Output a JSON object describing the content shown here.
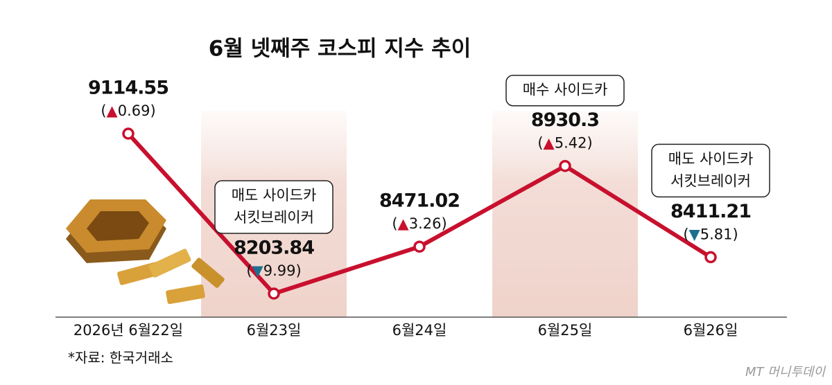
{
  "chart_data": {
    "type": "line",
    "title": "6월 넷째주 코스피 지수 추이",
    "categories": [
      "2026년 6월22일",
      "6월23일",
      "6월24일",
      "6월25일",
      "6월26일"
    ],
    "series": [
      {
        "name": "코스피",
        "color": "#c8102e",
        "values": [
          9114.55,
          8203.84,
          8471.02,
          8930.3,
          8411.21
        ],
        "changes": [
          0.69,
          -9.99,
          3.26,
          5.42,
          -5.81
        ],
        "change_labels": [
          "(▲0.69)",
          "(▼9.99)",
          "(▲3.26)",
          "(▲5.42)",
          "(▼5.81)"
        ]
      }
    ],
    "annotations": [
      null,
      [
        "매도 사이드카",
        "서킷브레이커"
      ],
      null,
      [
        "매수 사이드카"
      ],
      [
        "매도 사이드카",
        "서킷브레이커"
      ]
    ],
    "source": "*자료: 한국거래소",
    "watermark": "MT 머니투데이"
  }
}
